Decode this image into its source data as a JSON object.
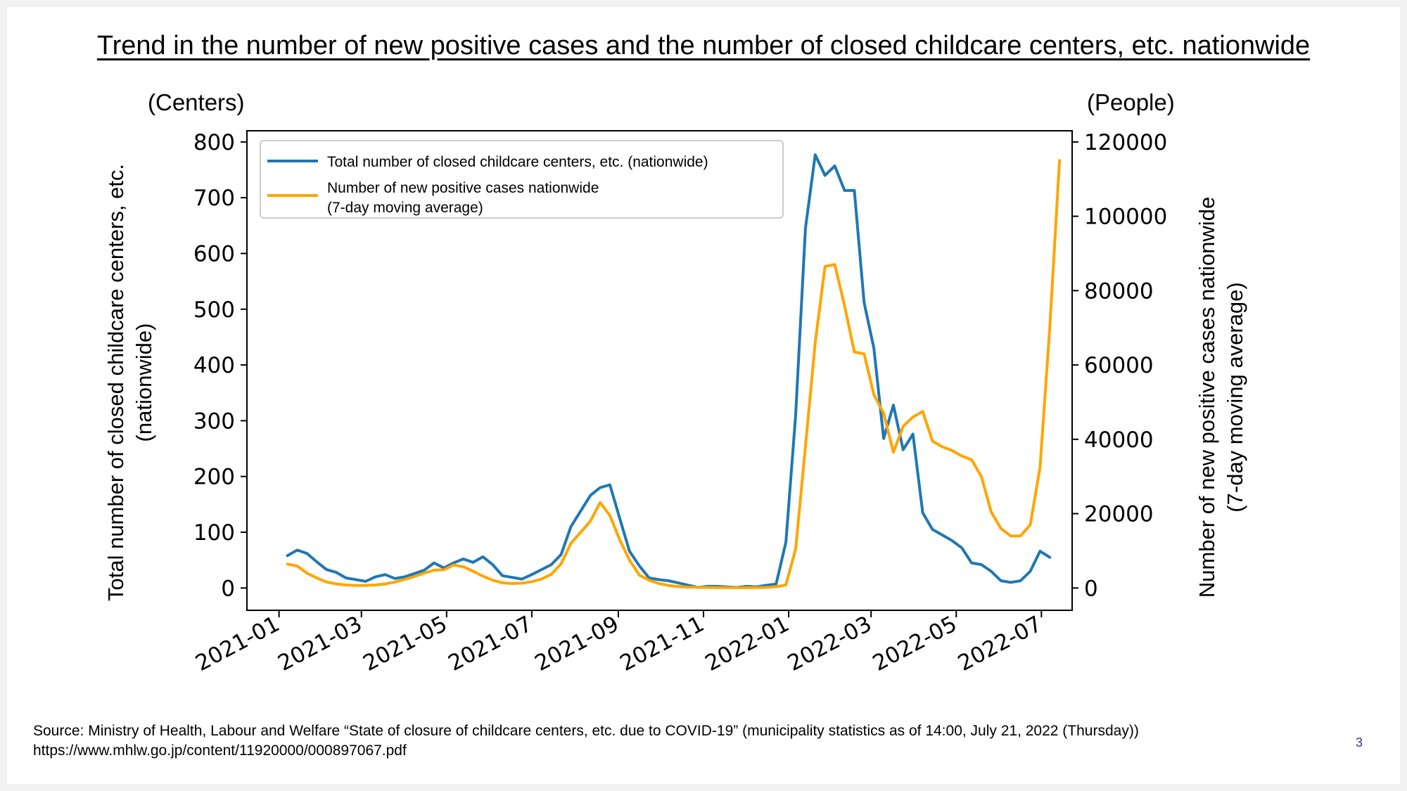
{
  "page": {
    "source_line1": "Source: Ministry of Health, Labour and Welfare “State of closure of childcare centers, etc. due to COVID-19” (municipality statistics as of 14:00, July 21, 2022 (Thursday))",
    "source_line2": "https://www.mhlw.go.jp/content/11920000/000897067.pdf",
    "page_number": "3"
  },
  "chart_data": {
    "type": "line",
    "title": "Trend in the number of new positive cases and the number of closed childcare centers, etc. nationwide",
    "y_left": {
      "unit": "(Centers)",
      "label_line1": "Total number of closed childcare centers, etc.",
      "label_line2": "(nationwide)",
      "ylim": [
        -40,
        820
      ],
      "ticks": [
        0,
        100,
        200,
        300,
        400,
        500,
        600,
        700,
        800
      ]
    },
    "y_right": {
      "unit": "(People)",
      "label_line1": "Number of new positive cases nationwide",
      "label_line2": "(7-day moving average)",
      "ylim": [
        -6000,
        123000
      ],
      "ticks": [
        0,
        20000,
        40000,
        60000,
        80000,
        100000,
        120000
      ]
    },
    "x_axis": {
      "xlim": [
        "2020-12-09",
        "2022-07-23"
      ],
      "ticks": [
        "2021-01",
        "2021-03",
        "2021-05",
        "2021-07",
        "2021-09",
        "2021-11",
        "2022-01",
        "2022-03",
        "2022-05",
        "2022-07"
      ]
    },
    "grid": false,
    "legend": {
      "placement": "upper-left",
      "entries": [
        {
          "label": "Total number of closed childcare centers, etc. (nationwide)"
        },
        {
          "label_line1": "Number of new positive cases nationwide",
          "label_line2": "(7-day moving average)"
        }
      ]
    },
    "series": [
      {
        "name": "Total number of closed childcare centers, etc. (nationwide)",
        "axis": "left",
        "color": "#1f77b4",
        "points": [
          [
            "2021-01-07",
            58
          ],
          [
            "2021-01-14",
            68
          ],
          [
            "2021-01-21",
            62
          ],
          [
            "2021-01-28",
            47
          ],
          [
            "2021-02-04",
            33
          ],
          [
            "2021-02-11",
            28
          ],
          [
            "2021-02-18",
            18
          ],
          [
            "2021-02-25",
            15
          ],
          [
            "2021-03-04",
            12
          ],
          [
            "2021-03-11",
            20
          ],
          [
            "2021-03-18",
            24
          ],
          [
            "2021-03-25",
            17
          ],
          [
            "2021-04-01",
            20
          ],
          [
            "2021-04-08",
            26
          ],
          [
            "2021-04-15",
            32
          ],
          [
            "2021-04-22",
            45
          ],
          [
            "2021-04-29",
            36
          ],
          [
            "2021-05-06",
            45
          ],
          [
            "2021-05-13",
            52
          ],
          [
            "2021-05-20",
            46
          ],
          [
            "2021-05-27",
            56
          ],
          [
            "2021-06-03",
            42
          ],
          [
            "2021-06-10",
            22
          ],
          [
            "2021-06-17",
            19
          ],
          [
            "2021-06-24",
            16
          ],
          [
            "2021-07-01",
            24
          ],
          [
            "2021-07-08",
            33
          ],
          [
            "2021-07-15",
            42
          ],
          [
            "2021-07-22",
            60
          ],
          [
            "2021-07-29",
            110
          ],
          [
            "2021-08-05",
            138
          ],
          [
            "2021-08-12",
            166
          ],
          [
            "2021-08-19",
            180
          ],
          [
            "2021-08-26",
            185
          ],
          [
            "2021-09-02",
            125
          ],
          [
            "2021-09-09",
            66
          ],
          [
            "2021-09-16",
            40
          ],
          [
            "2021-09-23",
            18
          ],
          [
            "2021-09-30",
            15
          ],
          [
            "2021-10-07",
            13
          ],
          [
            "2021-10-14",
            9
          ],
          [
            "2021-10-21",
            5
          ],
          [
            "2021-10-28",
            1
          ],
          [
            "2021-11-04",
            3
          ],
          [
            "2021-11-11",
            3
          ],
          [
            "2021-11-18",
            2
          ],
          [
            "2021-11-25",
            1
          ],
          [
            "2021-12-02",
            3
          ],
          [
            "2021-12-09",
            2
          ],
          [
            "2021-12-16",
            5
          ],
          [
            "2021-12-23",
            7
          ],
          [
            "2021-12-30",
            82
          ],
          [
            "2022-01-06",
            310
          ],
          [
            "2022-01-13",
            645
          ],
          [
            "2022-01-20",
            777
          ],
          [
            "2022-01-27",
            740
          ],
          [
            "2022-02-03",
            757
          ],
          [
            "2022-02-10",
            713
          ],
          [
            "2022-02-17",
            713
          ],
          [
            "2022-02-24",
            512
          ],
          [
            "2022-03-03",
            430
          ],
          [
            "2022-03-10",
            268
          ],
          [
            "2022-03-17",
            328
          ],
          [
            "2022-03-24",
            248
          ],
          [
            "2022-03-31",
            276
          ],
          [
            "2022-04-07",
            135
          ],
          [
            "2022-04-14",
            105
          ],
          [
            "2022-04-21",
            95
          ],
          [
            "2022-04-28",
            85
          ],
          [
            "2022-05-05",
            72
          ],
          [
            "2022-05-12",
            45
          ],
          [
            "2022-05-19",
            42
          ],
          [
            "2022-05-26",
            30
          ],
          [
            "2022-06-02",
            13
          ],
          [
            "2022-06-09",
            10
          ],
          [
            "2022-06-16",
            13
          ],
          [
            "2022-06-23",
            30
          ],
          [
            "2022-06-30",
            66
          ],
          [
            "2022-07-07",
            55
          ]
        ]
      },
      {
        "name": "Number of new positive cases nationwide (7-day moving average)",
        "axis": "right",
        "color": "#ffa500",
        "points": [
          [
            "2021-01-07",
            6400
          ],
          [
            "2021-01-14",
            5900
          ],
          [
            "2021-01-21",
            4000
          ],
          [
            "2021-01-28",
            2700
          ],
          [
            "2021-02-04",
            1600
          ],
          [
            "2021-02-11",
            1100
          ],
          [
            "2021-02-18",
            800
          ],
          [
            "2021-02-25",
            700
          ],
          [
            "2021-03-04",
            700
          ],
          [
            "2021-03-11",
            800
          ],
          [
            "2021-03-18",
            1100
          ],
          [
            "2021-03-25",
            1600
          ],
          [
            "2021-04-01",
            2300
          ],
          [
            "2021-04-08",
            3100
          ],
          [
            "2021-04-15",
            4000
          ],
          [
            "2021-04-22",
            4800
          ],
          [
            "2021-04-29",
            4900
          ],
          [
            "2021-05-06",
            6200
          ],
          [
            "2021-05-13",
            5700
          ],
          [
            "2021-05-20",
            4500
          ],
          [
            "2021-05-27",
            3200
          ],
          [
            "2021-06-03",
            2100
          ],
          [
            "2021-06-10",
            1400
          ],
          [
            "2021-06-17",
            1200
          ],
          [
            "2021-06-24",
            1300
          ],
          [
            "2021-07-01",
            1700
          ],
          [
            "2021-07-08",
            2400
          ],
          [
            "2021-07-15",
            3700
          ],
          [
            "2021-07-22",
            6500
          ],
          [
            "2021-07-29",
            12000
          ],
          [
            "2021-08-05",
            15000
          ],
          [
            "2021-08-12",
            18000
          ],
          [
            "2021-08-19",
            23000
          ],
          [
            "2021-08-26",
            19500
          ],
          [
            "2021-09-02",
            13000
          ],
          [
            "2021-09-09",
            7500
          ],
          [
            "2021-09-16",
            3500
          ],
          [
            "2021-09-23",
            2100
          ],
          [
            "2021-09-30",
            1200
          ],
          [
            "2021-10-07",
            700
          ],
          [
            "2021-10-14",
            400
          ],
          [
            "2021-10-21",
            250
          ],
          [
            "2021-10-28",
            180
          ],
          [
            "2021-11-04",
            150
          ],
          [
            "2021-11-11",
            130
          ],
          [
            "2021-11-18",
            120
          ],
          [
            "2021-11-25",
            110
          ],
          [
            "2021-12-02",
            110
          ],
          [
            "2021-12-09",
            130
          ],
          [
            "2021-12-16",
            160
          ],
          [
            "2021-12-23",
            350
          ],
          [
            "2021-12-30",
            800
          ],
          [
            "2022-01-06",
            10500
          ],
          [
            "2022-01-13",
            38000
          ],
          [
            "2022-01-20",
            66000
          ],
          [
            "2022-01-27",
            86500
          ],
          [
            "2022-02-03",
            87000
          ],
          [
            "2022-02-10",
            76000
          ],
          [
            "2022-02-17",
            63500
          ],
          [
            "2022-02-24",
            63000
          ],
          [
            "2022-03-03",
            52000
          ],
          [
            "2022-03-10",
            47000
          ],
          [
            "2022-03-17",
            36500
          ],
          [
            "2022-03-24",
            43500
          ],
          [
            "2022-03-31",
            46000
          ],
          [
            "2022-04-07",
            47500
          ],
          [
            "2022-04-14",
            39500
          ],
          [
            "2022-04-21",
            38000
          ],
          [
            "2022-04-28",
            37000
          ],
          [
            "2022-05-05",
            35500
          ],
          [
            "2022-05-12",
            34500
          ],
          [
            "2022-05-19",
            30000
          ],
          [
            "2022-05-26",
            20500
          ],
          [
            "2022-06-02",
            16000
          ],
          [
            "2022-06-09",
            14000
          ],
          [
            "2022-06-16",
            14000
          ],
          [
            "2022-06-23",
            17000
          ],
          [
            "2022-06-30",
            32500
          ],
          [
            "2022-07-07",
            70000
          ],
          [
            "2022-07-14",
            115000
          ]
        ]
      }
    ]
  }
}
